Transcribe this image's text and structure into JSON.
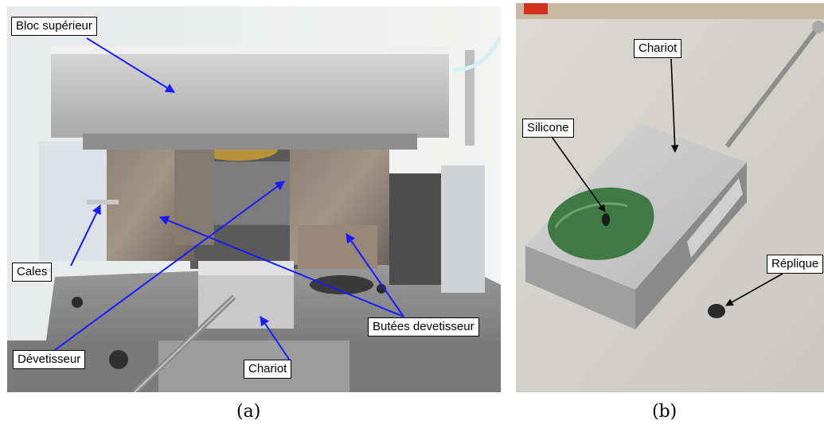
{
  "panel_a": {
    "caption": "(a)",
    "labels": {
      "bloc_superieur": "Bloc supérieur",
      "cales": "Cales",
      "devetisseur": "Dévetisseur",
      "chariot": "Chariot",
      "butees": "Butées devetisseur"
    },
    "arrow_color": "#1a1aff"
  },
  "panel_b": {
    "caption": "(b)",
    "labels": {
      "chariot": "Chariot",
      "silicone": "Silicone",
      "replique": "Réplique"
    },
    "arrow_color": "#000000"
  }
}
